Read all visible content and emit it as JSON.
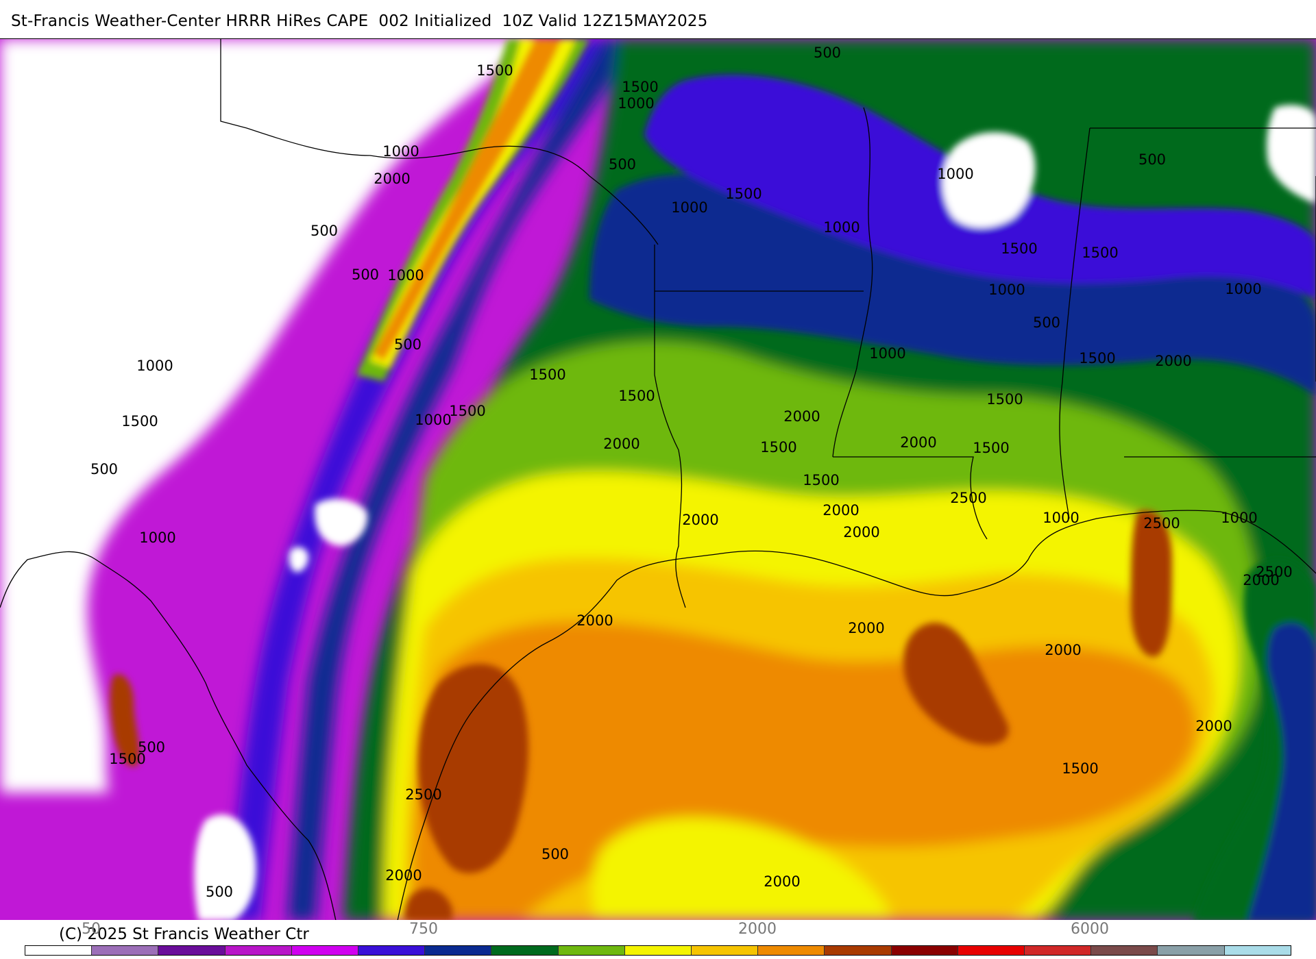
{
  "title": "St-Francis Weather-Center HRRR HiRes CAPE  002 Initialized  10Z Valid 12Z15MAY2025",
  "copyright": "(C) 2025 St Francis Weather Ctr",
  "colorbar": {
    "colors": [
      "#ffffff",
      "#9c6fb8",
      "#6a0d9a",
      "#b815c8",
      "#d000f0",
      "#3a10d8",
      "#0a2a90",
      "#006a1e",
      "#6eb810",
      "#f4f400",
      "#f6c400",
      "#ee8a00",
      "#a83a00",
      "#8a0000",
      "#e80000",
      "#d02828",
      "#7a4a4a",
      "#8aa0a8",
      "#aadce8"
    ],
    "tick_labels": [
      "50",
      "750",
      "2000",
      "6000"
    ]
  },
  "contour_labels": [
    "1500",
    "1500",
    "1000",
    "500",
    "1000",
    "2000",
    "500",
    "1500",
    "1000",
    "500",
    "500",
    "1000",
    "1000",
    "500",
    "1000",
    "500",
    "1000",
    "500",
    "1000",
    "1500",
    "1500",
    "1500",
    "1000",
    "1000",
    "1000",
    "1500",
    "1500",
    "2000",
    "500",
    "1000",
    "1500",
    "2000",
    "2000",
    "2000",
    "2000",
    "1500",
    "1500",
    "1500",
    "1500",
    "1000",
    "1500",
    "2500",
    "1000",
    "2000",
    "2000",
    "2500",
    "2500",
    "2000",
    "2000",
    "2000",
    "2000",
    "1500",
    "2500",
    "2000",
    "500",
    "1500",
    "500",
    "500",
    "2000",
    "2000"
  ]
}
